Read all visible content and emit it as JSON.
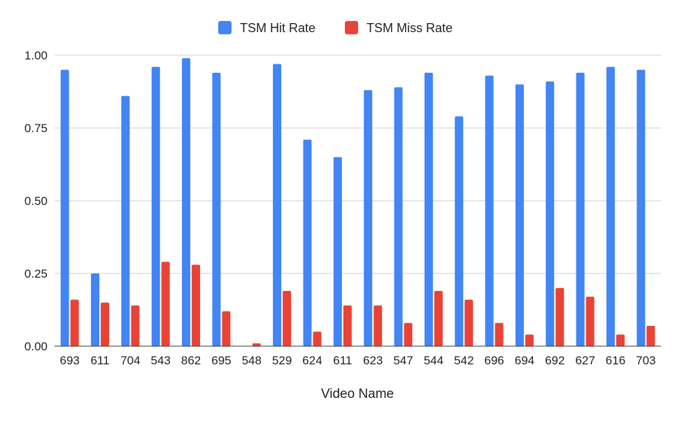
{
  "chart_data": {
    "type": "bar",
    "xlabel": "Video Name",
    "ylabel": "",
    "ylim": [
      0,
      1
    ],
    "yticks": [
      "0.00",
      "0.25",
      "0.50",
      "0.75",
      "1.00"
    ],
    "grid": true,
    "legend_position": "top-center",
    "categories": [
      "693",
      "611",
      "704",
      "543",
      "862",
      "695",
      "548",
      "529",
      "624",
      "611",
      "623",
      "547",
      "544",
      "542",
      "696",
      "694",
      "692",
      "627",
      "616",
      "703"
    ],
    "series": [
      {
        "name": "TSM Hit Rate",
        "color": "#4285f4",
        "values": [
          0.95,
          0.25,
          0.86,
          0.96,
          0.99,
          0.94,
          0.0,
          0.97,
          0.71,
          0.65,
          0.88,
          0.89,
          0.94,
          0.79,
          0.93,
          0.9,
          0.91,
          0.94,
          0.96,
          0.95
        ]
      },
      {
        "name": "TSM Miss Rate",
        "color": "#ea4335",
        "values": [
          0.16,
          0.15,
          0.14,
          0.29,
          0.28,
          0.12,
          0.01,
          0.19,
          0.05,
          0.14,
          0.14,
          0.08,
          0.19,
          0.16,
          0.08,
          0.04,
          0.2,
          0.17,
          0.04,
          0.07
        ]
      }
    ]
  }
}
